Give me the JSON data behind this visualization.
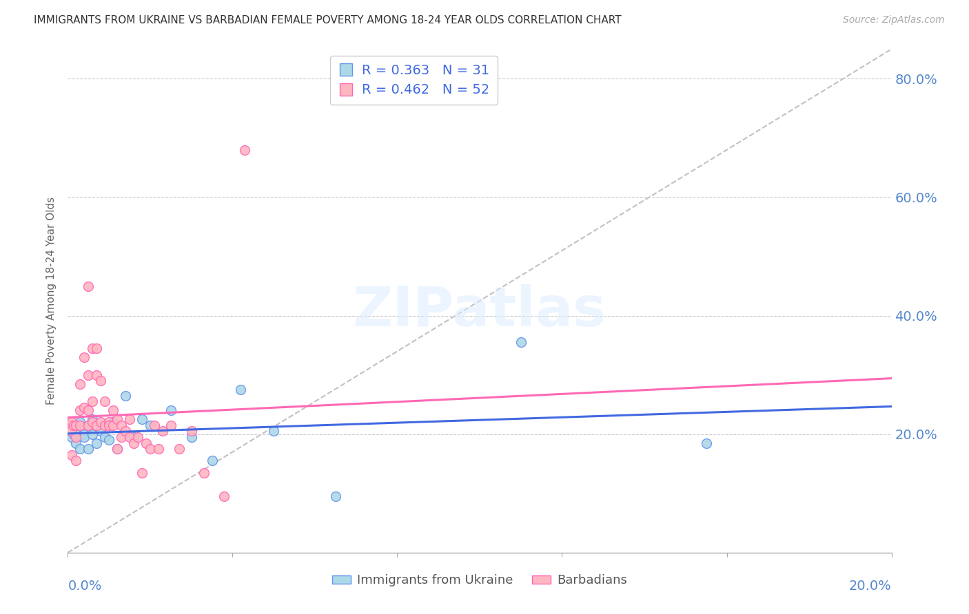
{
  "title": "IMMIGRANTS FROM UKRAINE VS BARBADIAN FEMALE POVERTY AMONG 18-24 YEAR OLDS CORRELATION CHART",
  "source": "Source: ZipAtlas.com",
  "ylabel": "Female Poverty Among 18-24 Year Olds",
  "xlim": [
    0.0,
    0.2
  ],
  "ylim": [
    0.0,
    0.85
  ],
  "yticks": [
    0.2,
    0.4,
    0.6,
    0.8
  ],
  "xticks": [
    0.0,
    0.04,
    0.08,
    0.12,
    0.16,
    0.2
  ],
  "ukraine_fill_color": "#ADD8E6",
  "ukraine_edge_color": "#6495ED",
  "barbadian_fill_color": "#FFB6C1",
  "barbadian_edge_color": "#FF69B4",
  "trendline_ukraine_color": "#4169E1",
  "trendline_barbadian_color": "#FF69B4",
  "diagonal_color": "#BBBBBB",
  "legend_ukraine_label": "R = 0.363   N = 31",
  "legend_barbadian_label": "R = 0.462   N = 52",
  "legend_label_ukraine": "Immigrants from Ukraine",
  "legend_label_barbadian": "Barbadians",
  "watermark": "ZIPatlas",
  "ukraine_x": [
    0.0008,
    0.001,
    0.0015,
    0.002,
    0.002,
    0.003,
    0.003,
    0.004,
    0.004,
    0.005,
    0.005,
    0.006,
    0.006,
    0.007,
    0.008,
    0.009,
    0.01,
    0.011,
    0.012,
    0.014,
    0.016,
    0.018,
    0.02,
    0.025,
    0.03,
    0.035,
    0.042,
    0.05,
    0.065,
    0.11,
    0.155
  ],
  "ukraine_y": [
    0.215,
    0.195,
    0.2,
    0.185,
    0.21,
    0.175,
    0.22,
    0.2,
    0.195,
    0.175,
    0.215,
    0.2,
    0.225,
    0.185,
    0.205,
    0.195,
    0.19,
    0.22,
    0.175,
    0.265,
    0.195,
    0.225,
    0.215,
    0.24,
    0.195,
    0.155,
    0.275,
    0.205,
    0.095,
    0.355,
    0.185
  ],
  "barbadian_x": [
    0.0005,
    0.0008,
    0.001,
    0.001,
    0.0015,
    0.002,
    0.002,
    0.002,
    0.003,
    0.003,
    0.003,
    0.004,
    0.004,
    0.005,
    0.005,
    0.005,
    0.005,
    0.006,
    0.006,
    0.006,
    0.007,
    0.007,
    0.007,
    0.008,
    0.008,
    0.009,
    0.009,
    0.01,
    0.01,
    0.011,
    0.011,
    0.012,
    0.012,
    0.013,
    0.013,
    0.014,
    0.015,
    0.015,
    0.016,
    0.017,
    0.018,
    0.019,
    0.02,
    0.021,
    0.022,
    0.023,
    0.025,
    0.027,
    0.03,
    0.033,
    0.038,
    0.043
  ],
  "barbadian_y": [
    0.215,
    0.205,
    0.22,
    0.165,
    0.215,
    0.215,
    0.195,
    0.155,
    0.285,
    0.24,
    0.215,
    0.33,
    0.245,
    0.45,
    0.3,
    0.24,
    0.215,
    0.345,
    0.255,
    0.22,
    0.345,
    0.3,
    0.215,
    0.29,
    0.22,
    0.255,
    0.215,
    0.22,
    0.215,
    0.24,
    0.215,
    0.225,
    0.175,
    0.195,
    0.215,
    0.205,
    0.225,
    0.195,
    0.185,
    0.195,
    0.135,
    0.185,
    0.175,
    0.215,
    0.175,
    0.205,
    0.215,
    0.175,
    0.205,
    0.135,
    0.095,
    0.68
  ]
}
